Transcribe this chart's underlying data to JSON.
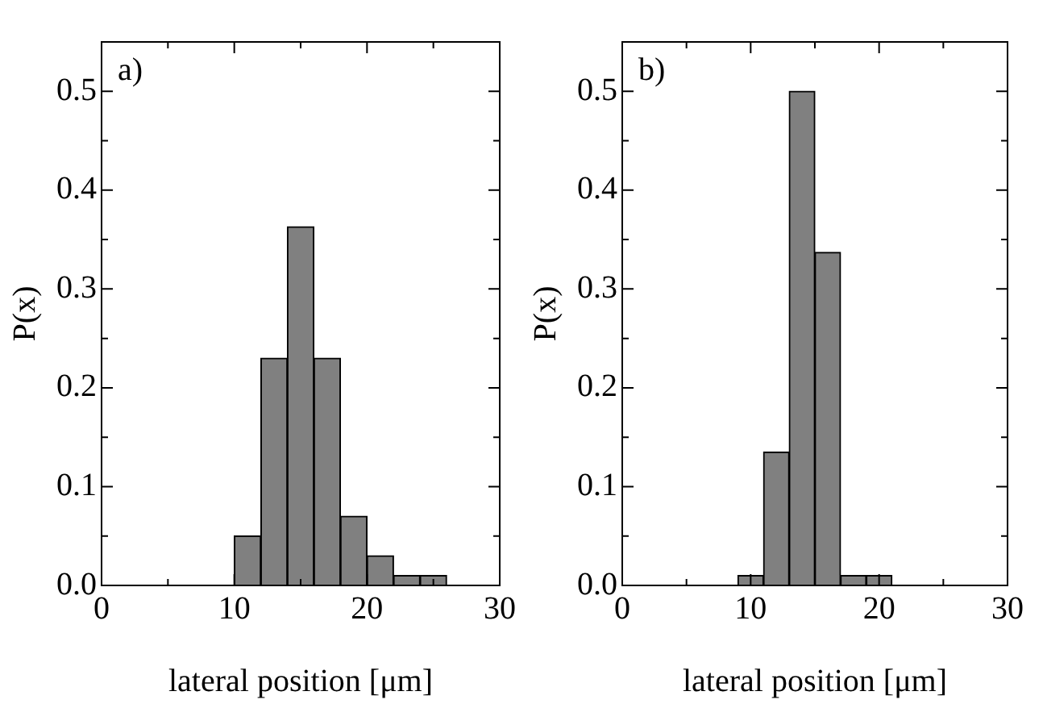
{
  "chart_data": [
    {
      "type": "histogram",
      "annotations": [
        "a)"
      ],
      "xlabel": "lateral position [μm]",
      "ylabel": "P(x)",
      "color": "#808080",
      "bins": [
        10,
        12,
        14,
        16,
        18,
        20,
        22,
        24,
        26
      ],
      "values": [
        0.05,
        0.23,
        0.363,
        0.23,
        0.07,
        0.03,
        0.01,
        0.01
      ],
      "xlim": [
        0,
        30
      ],
      "ylim": [
        0,
        0.55
      ],
      "xticks": [
        0,
        {
          "value": 5,
          "label": null
        },
        10,
        {
          "value": 15,
          "label": null
        },
        20,
        {
          "value": 25,
          "label": null
        },
        30
      ],
      "yticks": [
        {
          "value": 0,
          "label": "0.0"
        },
        {
          "value": 0.05,
          "label": null
        },
        0.1,
        {
          "value": 0.15,
          "label": null
        },
        0.2,
        {
          "value": 0.25,
          "label": null
        },
        0.3,
        {
          "value": 0.35,
          "label": null
        },
        0.4,
        {
          "value": 0.45,
          "label": null
        },
        0.5
      ],
      "grid": false,
      "legend": false
    },
    {
      "type": "histogram",
      "annotations": [
        "b)"
      ],
      "xlabel": "lateral position [μm]",
      "ylabel": "P(x)",
      "color": "#808080",
      "bins": [
        9,
        11,
        13,
        15,
        17,
        19,
        21
      ],
      "values": [
        0.01,
        0.135,
        0.5,
        0.337,
        0.01,
        0.01
      ],
      "xlim": [
        0,
        30
      ],
      "ylim": [
        0,
        0.55
      ],
      "xticks": [
        0,
        {
          "value": 5,
          "label": null
        },
        10,
        {
          "value": 15,
          "label": null
        },
        20,
        {
          "value": 25,
          "label": null
        },
        30
      ],
      "yticks": [
        {
          "value": 0,
          "label": "0.0"
        },
        {
          "value": 0.05,
          "label": null
        },
        0.1,
        {
          "value": 0.15,
          "label": null
        },
        0.2,
        {
          "value": 0.25,
          "label": null
        },
        0.3,
        {
          "value": 0.35,
          "label": null
        },
        0.4,
        {
          "value": 0.45,
          "label": null
        },
        0.5
      ],
      "grid": false,
      "legend": false
    }
  ]
}
